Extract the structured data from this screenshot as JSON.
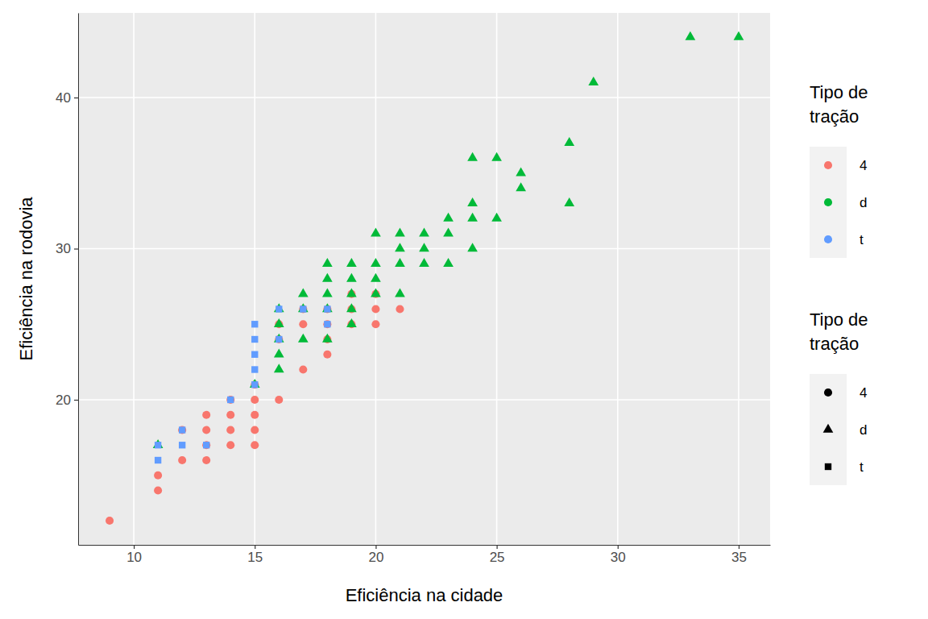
{
  "chart_data": {
    "type": "scatter",
    "x_label": "Eficiência na cidade",
    "y_label": "Eficiência na rodovia",
    "legend_titles": [
      "Tipo de\ntração",
      "Tipo de\ntração"
    ],
    "xlim": [
      7.7,
      36.3
    ],
    "ylim": [
      10.4,
      45.6
    ],
    "xticks": [
      10,
      15,
      20,
      25,
      30,
      35
    ],
    "yticks": [
      20,
      30,
      40
    ],
    "grid": true,
    "legend": "right",
    "series": [
      {
        "name": "4",
        "color": "#F8766D",
        "marker": "circle",
        "x": [
          9,
          11,
          11,
          12,
          12,
          13,
          13,
          13,
          13,
          14,
          14,
          14,
          14,
          15,
          15,
          15,
          15,
          16,
          16,
          17,
          17,
          18,
          18,
          18,
          18,
          19,
          19,
          19,
          20,
          20,
          20,
          21,
          16,
          17,
          15
        ],
        "values": [
          12,
          14,
          15,
          16,
          18,
          16,
          17,
          18,
          19,
          17,
          18,
          19,
          20,
          17,
          18,
          19,
          20,
          20,
          25,
          22,
          25,
          23,
          24,
          25,
          26,
          25,
          26,
          27,
          25,
          26,
          27,
          26,
          24,
          26,
          21
        ]
      },
      {
        "name": "d",
        "color": "#00BA38",
        "marker": "triangle",
        "x": [
          11,
          15,
          16,
          16,
          16,
          16,
          16,
          17,
          17,
          17,
          18,
          18,
          18,
          18,
          18,
          19,
          19,
          19,
          19,
          19,
          20,
          20,
          20,
          20,
          21,
          21,
          21,
          21,
          22,
          22,
          22,
          23,
          23,
          23,
          24,
          24,
          24,
          24,
          25,
          25,
          26,
          26,
          28,
          28,
          29,
          33,
          35
        ],
        "values": [
          17,
          21,
          22,
          23,
          24,
          25,
          26,
          24,
          26,
          27,
          24,
          26,
          27,
          28,
          29,
          25,
          26,
          27,
          28,
          29,
          27,
          28,
          29,
          31,
          27,
          29,
          30,
          31,
          29,
          30,
          31,
          29,
          31,
          32,
          30,
          32,
          33,
          36,
          32,
          36,
          34,
          35,
          33,
          37,
          41,
          44,
          44
        ]
      },
      {
        "name": "t",
        "color": "#619CFF",
        "marker": "square",
        "x": [
          11,
          11,
          12,
          12,
          13,
          14,
          15,
          15,
          15,
          15,
          15,
          16,
          16,
          17,
          18,
          18
        ],
        "values": [
          16,
          17,
          17,
          18,
          17,
          20,
          21,
          22,
          23,
          24,
          25,
          24,
          26,
          26,
          25,
          26
        ]
      }
    ]
  }
}
